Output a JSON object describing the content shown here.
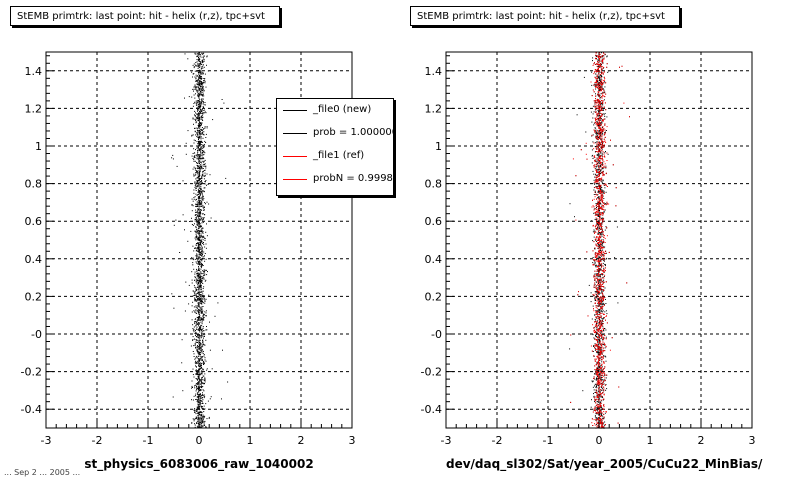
{
  "panels": [
    {
      "title": "StEMB primtrk: last point: hit - helix (r,z), tpc+svt",
      "xlabel": "st_physics_6083006_raw_1040002"
    },
    {
      "title": "StEMB primtrk: last point: hit - helix (r,z), tpc+svt",
      "xlabel": "dev/daq_sl302/Sat/year_2005/CuCu22_MinBias/"
    }
  ],
  "legend": {
    "entries": [
      {
        "label": "_file0 (new)",
        "color": "#000000"
      },
      {
        "label": "prob = 1.000000",
        "color": "#000000"
      },
      {
        "label": "_file1 (ref)",
        "color": "#ff0000"
      },
      {
        "label": "probN = 0.999859",
        "color": "#ff0000"
      }
    ]
  },
  "footer": "... Sep 2 ... 2005 ...",
  "chart_data": [
    {
      "type": "scatter",
      "title": "StEMB primtrk: last point: hit - helix (r,z), tpc+svt",
      "xlabel": "st_physics_6083006_raw_1040002",
      "ylabel": "",
      "xlim": [
        -3,
        3
      ],
      "ylim": [
        -0.5,
        1.5
      ],
      "xticks": [
        "-3",
        "-2",
        "-1",
        "0",
        "1",
        "2",
        "3"
      ],
      "yticks": [
        "-0.4",
        "-0.2",
        "-0",
        "0.2",
        "0.4",
        "0.6",
        "0.8",
        "1",
        "1.2",
        "1.4"
      ],
      "grid": true,
      "series": [
        {
          "name": "_file0 (new)",
          "color": "#000000",
          "x_center": 0.0,
          "x_spread": 0.1,
          "y_range": [
            -0.5,
            1.5
          ]
        }
      ]
    },
    {
      "type": "scatter",
      "title": "StEMB primtrk: last point: hit - helix (r,z), tpc+svt",
      "xlabel": "dev/daq_sl302/Sat/year_2005/CuCu22_MinBias/",
      "ylabel": "",
      "xlim": [
        -3,
        3
      ],
      "ylim": [
        -0.5,
        1.5
      ],
      "xticks": [
        "-3",
        "-2",
        "-1",
        "0",
        "1",
        "2",
        "3"
      ],
      "yticks": [
        "-0.4",
        "-0.2",
        "-0",
        "0.2",
        "0.4",
        "0.6",
        "0.8",
        "1",
        "1.2",
        "1.4"
      ],
      "grid": true,
      "series": [
        {
          "name": "_file0 (new)",
          "color": "#000000",
          "x_center": 0.0,
          "x_spread": 0.1,
          "y_range": [
            -0.5,
            1.5
          ]
        },
        {
          "name": "_file1 (ref)",
          "color": "#ff0000",
          "x_center": 0.0,
          "x_spread": 0.1,
          "y_range": [
            -0.5,
            1.5
          ]
        }
      ]
    }
  ]
}
